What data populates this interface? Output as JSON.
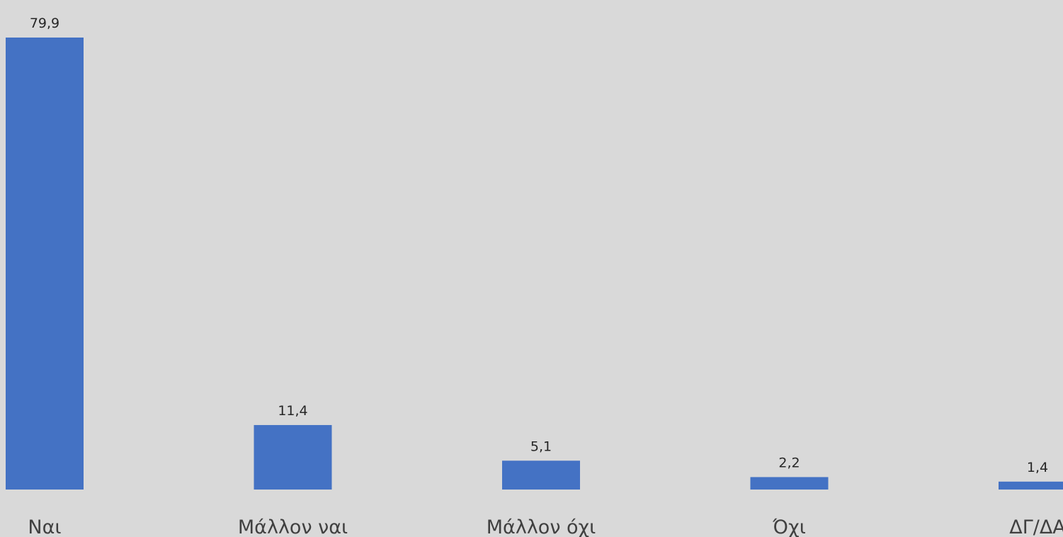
{
  "chart_data": {
    "type": "bar",
    "categories": [
      "Ναι",
      "Μάλλον ναι",
      "Μάλλον όχι",
      "Όχι",
      "ΔΓ/ΔΑ"
    ],
    "values": [
      79.9,
      11.4,
      5.1,
      2.2,
      1.4
    ],
    "value_labels": [
      "79,9",
      "11,4",
      "5,1",
      "2,2",
      "1,4"
    ],
    "title": "",
    "xlabel": "",
    "ylabel": "",
    "ylim": [
      0,
      79.9
    ],
    "grid": false,
    "legend": "none",
    "colors": {
      "bar": "#4472c4",
      "background": "#d9d9d9",
      "data_label": "#262626",
      "category_label": "#404040"
    }
  }
}
